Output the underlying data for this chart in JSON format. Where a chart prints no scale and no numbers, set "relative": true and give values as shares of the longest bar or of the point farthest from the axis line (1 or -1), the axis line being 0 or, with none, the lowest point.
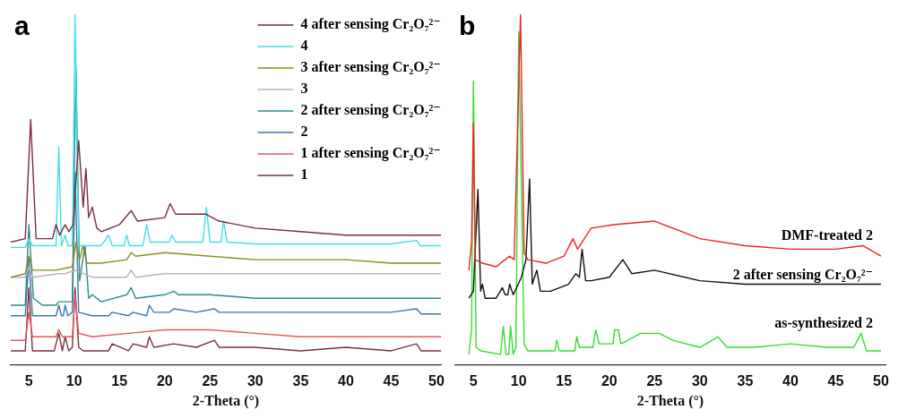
{
  "chart_data": [
    {
      "type": "line",
      "relative": true,
      "xlabel": "2-Theta (°)",
      "annotations": [
        "a"
      ],
      "xlim": [
        3,
        50.5
      ],
      "xticks": [
        5,
        10,
        15,
        20,
        25,
        30,
        35,
        40,
        45,
        50
      ],
      "legend": "top right",
      "series": [
        {
          "name": "4 after sensing Cr₂O₇²⁻",
          "color": "#7a2a45",
          "x": [
            3,
            4.6,
            5.2,
            5.8,
            7.6,
            8.0,
            8.4,
            8.8,
            9.0,
            9.4,
            9.9,
            10.5,
            11.0,
            11.3,
            11.6,
            12.0,
            12.5,
            13,
            15,
            16.3,
            17,
            20,
            20.6,
            21.2,
            24.5,
            26,
            30,
            35,
            40,
            45,
            50.5
          ],
          "values": [
            0.35,
            0.36,
            0.7,
            0.36,
            0.36,
            0.4,
            0.37,
            0.39,
            0.4,
            0.38,
            0.4,
            0.64,
            0.45,
            0.56,
            0.42,
            0.45,
            0.39,
            0.38,
            0.4,
            0.44,
            0.41,
            0.42,
            0.46,
            0.43,
            0.43,
            0.41,
            0.39,
            0.38,
            0.37,
            0.37,
            0.37
          ]
        },
        {
          "name": "4",
          "color": "#40e0e8",
          "x": [
            3,
            4.6,
            5.0,
            5.4,
            8.0,
            8.3,
            8.6,
            9.0,
            9.3,
            9.8,
            10.1,
            10.5,
            13,
            13.8,
            14.2,
            15.5,
            15.8,
            16.1,
            17.6,
            18.0,
            18.4,
            20.5,
            20.8,
            21.2,
            24.2,
            24.6,
            25,
            26.2,
            26.5,
            26.9,
            30,
            35,
            40,
            45,
            47.8,
            48.2,
            50.5
          ],
          "values": [
            0.335,
            0.335,
            0.36,
            0.34,
            0.34,
            0.62,
            0.34,
            0.37,
            0.34,
            0.34,
            1.0,
            0.34,
            0.34,
            0.37,
            0.34,
            0.34,
            0.37,
            0.34,
            0.34,
            0.4,
            0.35,
            0.35,
            0.37,
            0.35,
            0.35,
            0.45,
            0.35,
            0.35,
            0.41,
            0.35,
            0.345,
            0.345,
            0.345,
            0.345,
            0.355,
            0.34,
            0.34
          ]
        },
        {
          "name": "3 after sensing Cr₂O₇²⁻",
          "color": "#8a8a20",
          "x": [
            3,
            4.6,
            5.0,
            5.4,
            8,
            9.8,
            10.2,
            10.6,
            11.0,
            11.4,
            13,
            15.8,
            16.3,
            16.8,
            20,
            25,
            30,
            35,
            40,
            45,
            50.5
          ],
          "values": [
            0.25,
            0.26,
            0.31,
            0.27,
            0.27,
            0.28,
            0.35,
            0.3,
            0.34,
            0.29,
            0.29,
            0.3,
            0.32,
            0.31,
            0.32,
            0.31,
            0.3,
            0.3,
            0.3,
            0.29,
            0.29
          ]
        },
        {
          "name": "3",
          "color": "#c0b0b8",
          "x": [
            3,
            4.6,
            5.0,
            5.4,
            8.3,
            9.0,
            10.1,
            12,
            15.8,
            16.3,
            16.8,
            20,
            25,
            30,
            40,
            50.5
          ],
          "values": [
            0.25,
            0.25,
            0.28,
            0.25,
            0.26,
            0.26,
            0.27,
            0.25,
            0.25,
            0.27,
            0.25,
            0.26,
            0.26,
            0.26,
            0.26,
            0.26
          ]
        },
        {
          "name": "2 after sensing Cr₂O₇²⁻",
          "color": "#2a8a8a",
          "x": [
            3,
            4.6,
            5.0,
            5.5,
            6.0,
            6.5,
            8.0,
            8.3,
            9.0,
            9.8,
            10.2,
            10.6,
            11.2,
            11.6,
            12,
            13,
            15.8,
            16.3,
            16.8,
            20,
            21.0,
            21.5,
            25,
            30,
            40,
            50.5
          ],
          "values": [
            0.17,
            0.17,
            0.4,
            0.19,
            0.18,
            0.17,
            0.17,
            0.18,
            0.18,
            0.18,
            0.85,
            0.24,
            0.34,
            0.19,
            0.2,
            0.18,
            0.2,
            0.22,
            0.19,
            0.2,
            0.21,
            0.2,
            0.2,
            0.19,
            0.19,
            0.19
          ]
        },
        {
          "name": "2",
          "color": "#3a78b0",
          "x": [
            3,
            4.6,
            5.0,
            5.4,
            8,
            8.3,
            8.6,
            8.8,
            9.0,
            9.3,
            9.8,
            10.1,
            10.5,
            12,
            13.8,
            14.2,
            16,
            16.5,
            18,
            18.3,
            18.8,
            20.5,
            21,
            23.5,
            25.5,
            26,
            30,
            35,
            40,
            45,
            47.8,
            48.3,
            50.5
          ],
          "values": [
            0.14,
            0.14,
            0.3,
            0.14,
            0.14,
            0.17,
            0.14,
            0.14,
            0.17,
            0.14,
            0.15,
            0.55,
            0.15,
            0.14,
            0.14,
            0.15,
            0.14,
            0.15,
            0.14,
            0.17,
            0.15,
            0.15,
            0.16,
            0.15,
            0.16,
            0.15,
            0.15,
            0.15,
            0.15,
            0.15,
            0.16,
            0.145,
            0.145
          ]
        },
        {
          "name": "1 after sensing Cr₂O₇²⁻",
          "color": "#e8555a",
          "x": [
            3,
            4.6,
            5.0,
            5.4,
            8,
            8.3,
            8.7,
            9.8,
            10.1,
            10.5,
            12,
            16,
            20,
            25,
            30,
            35,
            40,
            45,
            50.5
          ],
          "values": [
            0.07,
            0.07,
            0.15,
            0.08,
            0.08,
            0.1,
            0.08,
            0.08,
            0.2,
            0.09,
            0.08,
            0.09,
            0.1,
            0.1,
            0.09,
            0.08,
            0.08,
            0.08,
            0.08
          ]
        },
        {
          "name": "1",
          "color": "#7b3040",
          "x": [
            3,
            4.6,
            5.0,
            5.4,
            7.8,
            8.3,
            8.7,
            9.0,
            9.4,
            9.8,
            10.1,
            10.5,
            11,
            13.8,
            14.2,
            16,
            16.5,
            18,
            18.3,
            18.8,
            21,
            23.5,
            25.5,
            26,
            30,
            35,
            40,
            45,
            47.8,
            48.3,
            50.5
          ],
          "values": [
            0.04,
            0.04,
            0.22,
            0.04,
            0.04,
            0.09,
            0.04,
            0.08,
            0.04,
            0.05,
            0.22,
            0.05,
            0.04,
            0.04,
            0.06,
            0.04,
            0.06,
            0.05,
            0.08,
            0.05,
            0.06,
            0.05,
            0.07,
            0.05,
            0.05,
            0.04,
            0.05,
            0.04,
            0.06,
            0.04,
            0.04
          ]
        }
      ]
    },
    {
      "type": "line",
      "relative": true,
      "xlabel": "2-Theta (°)",
      "annotations": [
        "b"
      ],
      "xlim": [
        3,
        50.5
      ],
      "xticks": [
        5,
        10,
        15,
        20,
        25,
        30,
        35,
        40,
        45,
        50
      ],
      "series": [
        {
          "name": "DMF-treated 2",
          "color": "#ee2222",
          "x": [
            4.5,
            4.8,
            5.0,
            5.2,
            6,
            7.5,
            8.5,
            9,
            9.5,
            10.2,
            10.6,
            11,
            13,
            15,
            16,
            16.5,
            18,
            20.5,
            25,
            30,
            35,
            40,
            45,
            48,
            50
          ],
          "values": [
            0.27,
            0.35,
            0.69,
            0.3,
            0.29,
            0.28,
            0.3,
            0.31,
            0.3,
            1.0,
            0.32,
            0.3,
            0.29,
            0.31,
            0.36,
            0.33,
            0.39,
            0.4,
            0.41,
            0.36,
            0.34,
            0.33,
            0.33,
            0.34,
            0.31
          ]
        },
        {
          "name": "2 after sensing Cr₂O₇²⁻",
          "color": "#111111",
          "x": [
            4.5,
            5.0,
            5.5,
            5.8,
            6.0,
            6.3,
            7.5,
            8.2,
            8.5,
            8.8,
            9.0,
            9.4,
            10.3,
            10.8,
            11.2,
            11.5,
            12,
            12.4,
            13.5,
            15.5,
            16.3,
            16.7,
            17.0,
            17.4,
            18,
            20,
            21.5,
            22.5,
            25,
            30,
            35,
            40,
            45,
            50
          ],
          "values": [
            0.19,
            0.21,
            0.5,
            0.21,
            0.23,
            0.19,
            0.19,
            0.22,
            0.2,
            0.2,
            0.23,
            0.2,
            0.25,
            0.3,
            0.53,
            0.23,
            0.27,
            0.21,
            0.21,
            0.23,
            0.26,
            0.25,
            0.33,
            0.24,
            0.24,
            0.25,
            0.3,
            0.26,
            0.27,
            0.24,
            0.23,
            0.23,
            0.23,
            0.23
          ]
        },
        {
          "name": "as-synthesized 2",
          "color": "#33dd33",
          "x": [
            4.5,
            4.8,
            5.0,
            5.3,
            5.8,
            8,
            8.3,
            8.6,
            8.9,
            9.1,
            9.4,
            9.7,
            10.0,
            10.6,
            11,
            14,
            14.2,
            14.5,
            16.2,
            16.4,
            16.7,
            18.2,
            18.5,
            18.9,
            20.4,
            20.6,
            21,
            21.3,
            23.5,
            25.5,
            27,
            30,
            32,
            33,
            36,
            40,
            44,
            47,
            47.8,
            48.4,
            50
          ],
          "values": [
            0.03,
            0.1,
            0.81,
            0.05,
            0.04,
            0.03,
            0.11,
            0.03,
            0.03,
            0.11,
            0.03,
            0.05,
            0.95,
            0.06,
            0.04,
            0.04,
            0.07,
            0.04,
            0.04,
            0.08,
            0.05,
            0.05,
            0.1,
            0.06,
            0.06,
            0.1,
            0.1,
            0.06,
            0.09,
            0.09,
            0.07,
            0.05,
            0.08,
            0.05,
            0.05,
            0.06,
            0.05,
            0.05,
            0.09,
            0.04,
            0.04
          ]
        }
      ]
    }
  ]
}
